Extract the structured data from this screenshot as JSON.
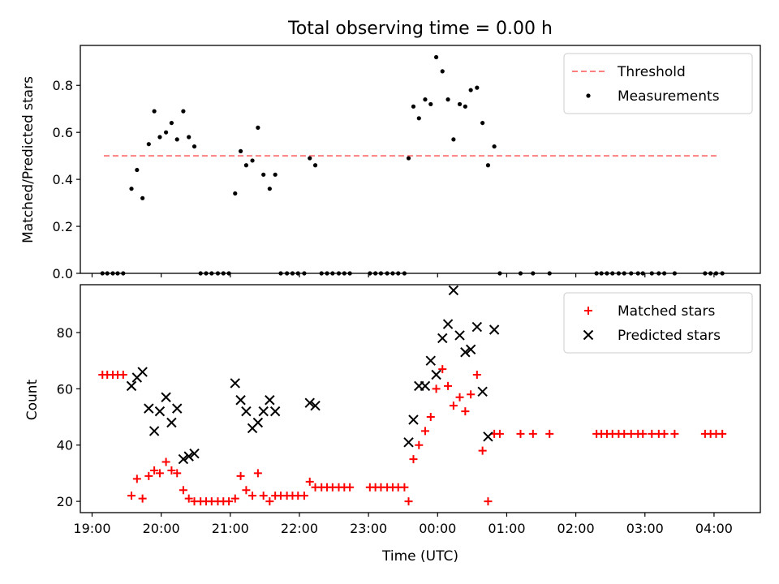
{
  "title": "Total observing time = 0.00 h",
  "chart_data": [
    {
      "type": "scatter",
      "ylabel": "Matched/Predicted stars",
      "xlim": [
        18.83,
        28.67
      ],
      "ylim": [
        0,
        0.97
      ],
      "yticks": [
        0.0,
        0.2,
        0.4,
        0.6,
        0.8
      ],
      "ytick_labels": [
        "0.0",
        "0.2",
        "0.4",
        "0.6",
        "0.8"
      ],
      "legend_position": "upper right",
      "threshold": {
        "name": "Threshold",
        "value": 0.5,
        "x_range": [
          19.17,
          28.05
        ],
        "color": "#ff7f7f",
        "style": "dashed"
      },
      "series": [
        {
          "name": "Measurements",
          "color": "#000000",
          "marker": "dot",
          "points": [
            [
              19.15,
              0.0
            ],
            [
              19.22,
              0.0
            ],
            [
              19.3,
              0.0
            ],
            [
              19.37,
              0.0
            ],
            [
              19.45,
              0.0
            ],
            [
              19.57,
              0.36
            ],
            [
              19.65,
              0.44
            ],
            [
              19.73,
              0.32
            ],
            [
              19.82,
              0.55
            ],
            [
              19.9,
              0.69
            ],
            [
              19.98,
              0.58
            ],
            [
              20.07,
              0.6
            ],
            [
              20.15,
              0.64
            ],
            [
              20.23,
              0.57
            ],
            [
              20.32,
              0.69
            ],
            [
              20.4,
              0.58
            ],
            [
              20.48,
              0.54
            ],
            [
              20.57,
              0.0
            ],
            [
              20.65,
              0.0
            ],
            [
              20.73,
              0.0
            ],
            [
              20.82,
              0.0
            ],
            [
              20.9,
              0.0
            ],
            [
              20.98,
              0.0
            ],
            [
              21.07,
              0.34
            ],
            [
              21.15,
              0.52
            ],
            [
              21.23,
              0.46
            ],
            [
              21.32,
              0.48
            ],
            [
              21.4,
              0.62
            ],
            [
              21.48,
              0.42
            ],
            [
              21.57,
              0.36
            ],
            [
              21.65,
              0.42
            ],
            [
              21.73,
              0.0
            ],
            [
              21.82,
              0.0
            ],
            [
              21.9,
              0.0
            ],
            [
              21.98,
              0.0
            ],
            [
              22.07,
              0.0
            ],
            [
              22.15,
              0.49
            ],
            [
              22.23,
              0.46
            ],
            [
              22.32,
              0.0
            ],
            [
              22.4,
              0.0
            ],
            [
              22.48,
              0.0
            ],
            [
              22.57,
              0.0
            ],
            [
              22.65,
              0.0
            ],
            [
              22.73,
              0.0
            ],
            [
              23.02,
              0.0
            ],
            [
              23.1,
              0.0
            ],
            [
              23.18,
              0.0
            ],
            [
              23.27,
              0.0
            ],
            [
              23.35,
              0.0
            ],
            [
              23.43,
              0.0
            ],
            [
              23.52,
              0.0
            ],
            [
              23.58,
              0.49
            ],
            [
              23.65,
              0.71
            ],
            [
              23.73,
              0.66
            ],
            [
              23.82,
              0.74
            ],
            [
              23.9,
              0.72
            ],
            [
              23.98,
              0.92
            ],
            [
              24.07,
              0.86
            ],
            [
              24.15,
              0.74
            ],
            [
              24.23,
              0.57
            ],
            [
              24.32,
              0.72
            ],
            [
              24.4,
              0.71
            ],
            [
              24.48,
              0.78
            ],
            [
              24.57,
              0.79
            ],
            [
              24.65,
              0.64
            ],
            [
              24.73,
              0.46
            ],
            [
              24.82,
              0.54
            ],
            [
              24.9,
              0.0
            ],
            [
              25.2,
              0.0
            ],
            [
              25.38,
              0.0
            ],
            [
              25.62,
              0.0
            ],
            [
              26.3,
              0.0
            ],
            [
              26.37,
              0.0
            ],
            [
              26.45,
              0.0
            ],
            [
              26.53,
              0.0
            ],
            [
              26.62,
              0.0
            ],
            [
              26.7,
              0.0
            ],
            [
              26.8,
              0.0
            ],
            [
              26.9,
              0.0
            ],
            [
              26.97,
              0.0
            ],
            [
              27.1,
              0.0
            ],
            [
              27.2,
              0.0
            ],
            [
              27.28,
              0.0
            ],
            [
              27.43,
              0.0
            ],
            [
              27.87,
              0.0
            ],
            [
              27.95,
              0.0
            ],
            [
              28.03,
              0.0
            ],
            [
              28.12,
              0.0
            ]
          ]
        }
      ]
    },
    {
      "type": "scatter",
      "xlabel": "Time (UTC)",
      "ylabel": "Count",
      "xlim": [
        18.83,
        28.67
      ],
      "ylim": [
        16,
        97
      ],
      "yticks": [
        20,
        40,
        60,
        80
      ],
      "ytick_labels": [
        "20",
        "40",
        "60",
        "80"
      ],
      "xticks": [
        19,
        20,
        21,
        22,
        23,
        24,
        25,
        26,
        27,
        28
      ],
      "xtick_labels": [
        "19:00",
        "20:00",
        "21:00",
        "22:00",
        "23:00",
        "00:00",
        "01:00",
        "02:00",
        "03:00",
        "04:00"
      ],
      "legend_position": "upper right",
      "series": [
        {
          "name": "Matched stars",
          "color": "#ff0000",
          "marker": "plus",
          "points": [
            [
              19.15,
              65
            ],
            [
              19.22,
              65
            ],
            [
              19.3,
              65
            ],
            [
              19.37,
              65
            ],
            [
              19.45,
              65
            ],
            [
              19.57,
              22
            ],
            [
              19.65,
              28
            ],
            [
              19.73,
              21
            ],
            [
              19.82,
              29
            ],
            [
              19.9,
              31
            ],
            [
              19.98,
              30
            ],
            [
              20.07,
              34
            ],
            [
              20.15,
              31
            ],
            [
              20.23,
              30
            ],
            [
              20.32,
              24
            ],
            [
              20.4,
              21
            ],
            [
              20.48,
              20
            ],
            [
              20.57,
              20
            ],
            [
              20.65,
              20
            ],
            [
              20.73,
              20
            ],
            [
              20.82,
              20
            ],
            [
              20.9,
              20
            ],
            [
              20.98,
              20
            ],
            [
              21.07,
              21
            ],
            [
              21.15,
              29
            ],
            [
              21.23,
              24
            ],
            [
              21.32,
              22
            ],
            [
              21.4,
              30
            ],
            [
              21.48,
              22
            ],
            [
              21.57,
              20
            ],
            [
              21.65,
              22
            ],
            [
              21.73,
              22
            ],
            [
              21.82,
              22
            ],
            [
              21.9,
              22
            ],
            [
              21.98,
              22
            ],
            [
              22.07,
              22
            ],
            [
              22.15,
              27
            ],
            [
              22.23,
              25
            ],
            [
              22.32,
              25
            ],
            [
              22.4,
              25
            ],
            [
              22.48,
              25
            ],
            [
              22.57,
              25
            ],
            [
              22.65,
              25
            ],
            [
              22.73,
              25
            ],
            [
              23.02,
              25
            ],
            [
              23.1,
              25
            ],
            [
              23.18,
              25
            ],
            [
              23.27,
              25
            ],
            [
              23.35,
              25
            ],
            [
              23.43,
              25
            ],
            [
              23.52,
              25
            ],
            [
              23.58,
              20
            ],
            [
              23.65,
              35
            ],
            [
              23.73,
              40
            ],
            [
              23.82,
              45
            ],
            [
              23.9,
              50
            ],
            [
              23.98,
              60
            ],
            [
              24.07,
              67
            ],
            [
              24.15,
              61
            ],
            [
              24.23,
              54
            ],
            [
              24.32,
              57
            ],
            [
              24.4,
              52
            ],
            [
              24.48,
              58
            ],
            [
              24.57,
              65
            ],
            [
              24.65,
              38
            ],
            [
              24.73,
              20
            ],
            [
              24.82,
              44
            ],
            [
              24.9,
              44
            ],
            [
              25.2,
              44
            ],
            [
              25.38,
              44
            ],
            [
              25.62,
              44
            ],
            [
              26.3,
              44
            ],
            [
              26.37,
              44
            ],
            [
              26.45,
              44
            ],
            [
              26.53,
              44
            ],
            [
              26.62,
              44
            ],
            [
              26.7,
              44
            ],
            [
              26.8,
              44
            ],
            [
              26.9,
              44
            ],
            [
              26.97,
              44
            ],
            [
              27.1,
              44
            ],
            [
              27.2,
              44
            ],
            [
              27.28,
              44
            ],
            [
              27.43,
              44
            ],
            [
              27.87,
              44
            ],
            [
              27.95,
              44
            ],
            [
              28.03,
              44
            ],
            [
              28.12,
              44
            ]
          ]
        },
        {
          "name": "Predicted stars",
          "color": "#000000",
          "marker": "x",
          "points": [
            [
              19.57,
              61
            ],
            [
              19.65,
              64
            ],
            [
              19.73,
              66
            ],
            [
              19.82,
              53
            ],
            [
              19.9,
              45
            ],
            [
              19.98,
              52
            ],
            [
              20.07,
              57
            ],
            [
              20.15,
              48
            ],
            [
              20.23,
              53
            ],
            [
              20.32,
              35
            ],
            [
              20.4,
              36
            ],
            [
              20.48,
              37
            ],
            [
              21.07,
              62
            ],
            [
              21.15,
              56
            ],
            [
              21.23,
              52
            ],
            [
              21.32,
              46
            ],
            [
              21.4,
              48
            ],
            [
              21.48,
              52
            ],
            [
              21.57,
              56
            ],
            [
              21.65,
              52
            ],
            [
              22.15,
              55
            ],
            [
              22.23,
              54
            ],
            [
              23.58,
              41
            ],
            [
              23.65,
              49
            ],
            [
              23.73,
              61
            ],
            [
              23.82,
              61
            ],
            [
              23.9,
              70
            ],
            [
              23.98,
              65
            ],
            [
              24.07,
              78
            ],
            [
              24.15,
              83
            ],
            [
              24.23,
              95
            ],
            [
              24.32,
              79
            ],
            [
              24.4,
              73
            ],
            [
              24.48,
              74
            ],
            [
              24.57,
              82
            ],
            [
              24.65,
              59
            ],
            [
              24.73,
              43
            ],
            [
              24.82,
              81
            ]
          ]
        }
      ]
    }
  ]
}
